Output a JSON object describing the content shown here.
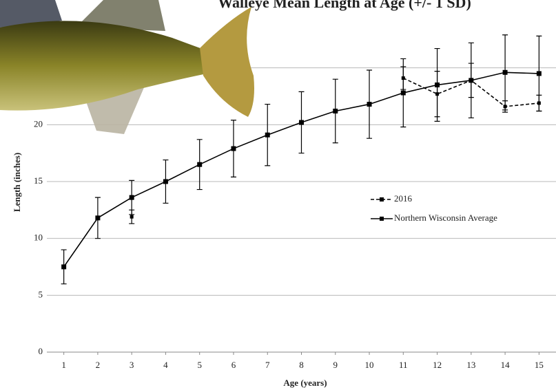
{
  "chart_data": {
    "type": "line",
    "title": "Walleye Mean Length at Age (+/- 1 SD)",
    "x_label": "Age (years)",
    "y_label": "Length (inches)",
    "x": [
      1,
      2,
      3,
      4,
      5,
      6,
      7,
      8,
      9,
      10,
      11,
      12,
      13,
      14,
      15
    ],
    "xlim": [
      0.5,
      15.5
    ],
    "xticks": [
      1,
      2,
      3,
      4,
      5,
      6,
      7,
      8,
      9,
      10,
      11,
      12,
      13,
      14,
      15
    ],
    "ylim": [
      0,
      30
    ],
    "yticks": [
      0,
      5,
      10,
      15,
      20,
      25
    ],
    "grid": true,
    "legend_position": "right",
    "series": [
      {
        "name": "2016",
        "color": "#000000",
        "line_style": "dashed",
        "values": [
          null,
          null,
          11.9,
          null,
          null,
          null,
          null,
          null,
          null,
          null,
          24.1,
          22.7,
          23.9,
          21.6,
          21.9
        ],
        "errors": [
          null,
          null,
          0.6,
          null,
          null,
          null,
          null,
          null,
          null,
          null,
          1.0,
          2.0,
          1.5,
          0.5,
          0.7
        ]
      },
      {
        "name": "Northern Wisconsin Average",
        "color": "#000000",
        "line_style": "solid",
        "values": [
          7.5,
          11.8,
          13.6,
          15.0,
          16.5,
          17.9,
          19.1,
          20.2,
          21.2,
          21.8,
          22.8,
          23.5,
          23.9,
          24.6,
          24.5
        ],
        "errors": [
          1.5,
          1.8,
          1.5,
          1.9,
          2.2,
          2.5,
          2.7,
          2.7,
          2.8,
          3.0,
          3.0,
          3.2,
          3.3,
          3.3,
          3.3
        ]
      }
    ]
  }
}
